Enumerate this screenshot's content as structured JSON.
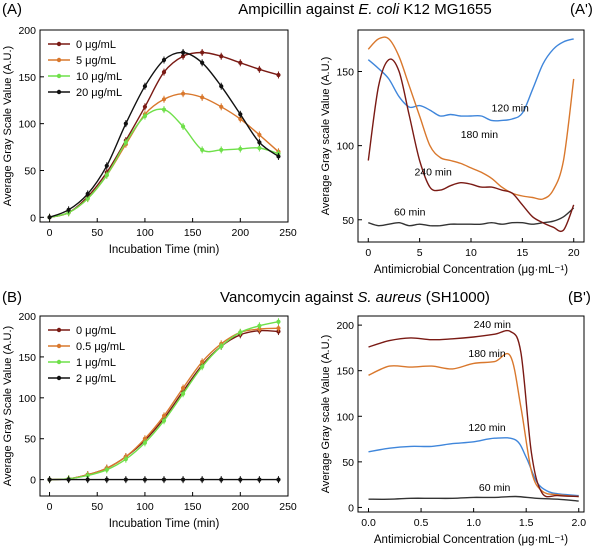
{
  "rows": [
    {
      "title_prefix": "Ampicillin against ",
      "title_species": "E. coli",
      "title_suffix": " K12 MG1655"
    },
    {
      "title_prefix": "Vancomycin against ",
      "title_species": "S. aureus",
      "title_suffix": " (SH1000)"
    }
  ],
  "colors": {
    "dark_red": "#7a1a14",
    "orange": "#d9782d",
    "green": "#6fe04a",
    "black": "#111111",
    "blue": "#3f86db"
  },
  "chart_data": [
    {
      "panel_label": "(A)",
      "type": "line",
      "title": "Ampicillin against E. coli K12 MG1655",
      "xlabel": "Incubation Time (min)",
      "ylabel": "Average Gray Scale Value (A.U.)",
      "xlim": [
        -10,
        250
      ],
      "ylim": [
        -5,
        200
      ],
      "xticks": [
        0,
        50,
        100,
        150,
        200,
        250
      ],
      "yticks": [
        0,
        50,
        100,
        150,
        200
      ],
      "legend": "top-left",
      "x": [
        0,
        20,
        40,
        60,
        80,
        100,
        120,
        140,
        160,
        180,
        200,
        220,
        240
      ],
      "series": [
        {
          "name": "0 μg/mL",
          "color": "#7a1a14",
          "values": [
            0,
            5,
            22,
            48,
            82,
            118,
            155,
            172,
            176,
            172,
            165,
            158,
            152
          ]
        },
        {
          "name": "5 μg/mL",
          "color": "#d9782d",
          "values": [
            0,
            5,
            20,
            45,
            78,
            110,
            126,
            132,
            128,
            118,
            105,
            88,
            70
          ]
        },
        {
          "name": "10 μg/mL",
          "color": "#6fe04a",
          "values": [
            0,
            5,
            20,
            45,
            80,
            108,
            115,
            97,
            72,
            72,
            73,
            74,
            68
          ]
        },
        {
          "name": "20 μg/mL",
          "color": "#111111",
          "values": [
            0,
            8,
            25,
            55,
            100,
            140,
            168,
            176,
            165,
            140,
            110,
            80,
            65
          ]
        }
      ]
    },
    {
      "panel_label": "(A')",
      "type": "line",
      "xlabel": "Antimicrobial Concentration (μg·mL⁻¹)",
      "ylabel": "Average Gray scale Value (A.U.)",
      "xlim": [
        -1,
        21
      ],
      "ylim": [
        35,
        178
      ],
      "xticks": [
        0,
        5,
        10,
        15,
        20
      ],
      "yticks": [
        50,
        100,
        150
      ],
      "annotations": [
        {
          "text": "120 min",
          "x": 12,
          "y": 123
        },
        {
          "text": "180 min",
          "x": 9,
          "y": 105
        },
        {
          "text": "240 min",
          "x": 4.5,
          "y": 80
        },
        {
          "text": "60 min",
          "x": 2.5,
          "y": 53
        }
      ],
      "series": [
        {
          "name": "60 min",
          "color": "#333333",
          "x": [
            0,
            1,
            2,
            3,
            4,
            5,
            6,
            7,
            8,
            9,
            10,
            11,
            12,
            13,
            14,
            15,
            16,
            17,
            18,
            19,
            20
          ],
          "values": [
            48,
            46,
            47,
            48,
            46,
            47,
            46,
            46,
            47,
            47,
            47,
            47,
            48,
            47,
            48,
            48,
            47,
            48,
            49,
            52,
            58
          ]
        },
        {
          "name": "120 min",
          "color": "#3f86db",
          "x": [
            0,
            1,
            2,
            3,
            4,
            5,
            6,
            7,
            8,
            9,
            10,
            11,
            12,
            13,
            14,
            15,
            16,
            17,
            18,
            19,
            20
          ],
          "values": [
            158,
            152,
            145,
            133,
            126,
            127,
            124,
            120,
            121,
            120,
            120,
            120,
            117,
            117,
            118,
            122,
            138,
            155,
            165,
            170,
            172
          ]
        },
        {
          "name": "180 min",
          "color": "#d9782d",
          "x": [
            0,
            1,
            2,
            3,
            4,
            5,
            6,
            7,
            8,
            9,
            10,
            11,
            12,
            13,
            14,
            15,
            16,
            17,
            18,
            19,
            20
          ],
          "values": [
            165,
            172,
            172,
            160,
            140,
            120,
            100,
            92,
            90,
            88,
            85,
            82,
            78,
            72,
            68,
            66,
            65,
            64,
            70,
            90,
            145
          ]
        },
        {
          "name": "240 min",
          "color": "#7a1a14",
          "x": [
            0,
            1,
            2,
            3,
            4,
            5,
            6,
            7,
            8,
            9,
            10,
            11,
            12,
            13,
            14,
            15,
            16,
            17,
            18,
            19,
            20
          ],
          "values": [
            90,
            140,
            158,
            150,
            120,
            90,
            72,
            70,
            73,
            75,
            74,
            72,
            72,
            70,
            68,
            60,
            52,
            48,
            45,
            43,
            60
          ]
        }
      ]
    },
    {
      "panel_label": "(B)",
      "type": "line",
      "title": "Vancomycin against S. aureus (SH1000)",
      "xlabel": "Incubation Time (min)",
      "ylabel": "Average Gray Scale Value (A.U.)",
      "xlim": [
        -10,
        250
      ],
      "ylim": [
        -20,
        200
      ],
      "xticks": [
        0,
        50,
        100,
        150,
        200,
        250
      ],
      "yticks": [
        0,
        50,
        100,
        150,
        200
      ],
      "legend": "top-left",
      "x": [
        0,
        20,
        40,
        60,
        80,
        100,
        120,
        140,
        160,
        180,
        200,
        220,
        240
      ],
      "series": [
        {
          "name": "0 μg/mL",
          "color": "#7a1a14",
          "values": [
            0,
            1,
            6,
            14,
            28,
            48,
            75,
            108,
            140,
            163,
            177,
            182,
            181
          ]
        },
        {
          "name": "0.5 μg/mL",
          "color": "#d9782d",
          "values": [
            0,
            1,
            6,
            14,
            28,
            50,
            78,
            112,
            144,
            166,
            180,
            184,
            185
          ]
        },
        {
          "name": "1 μg/mL",
          "color": "#6fe04a",
          "values": [
            0,
            1,
            5,
            12,
            25,
            45,
            72,
            105,
            138,
            163,
            180,
            188,
            193
          ]
        },
        {
          "name": "2 μg/mL",
          "color": "#111111",
          "values": [
            0,
            0,
            0,
            0,
            0,
            0,
            0,
            0,
            0,
            0,
            0,
            0,
            0
          ]
        }
      ]
    },
    {
      "panel_label": "(B')",
      "type": "line",
      "xlabel": "Antimicrobial Concentration (μg·mL⁻¹)",
      "ylabel": "Average Gray scale Value (A.U.)",
      "xlim": [
        -0.1,
        2.05
      ],
      "ylim": [
        -5,
        210
      ],
      "xticks": [
        0.0,
        0.5,
        1.0,
        1.5,
        2.0
      ],
      "yticks": [
        0,
        50,
        100,
        150,
        200
      ],
      "annotations": [
        {
          "text": "240 min",
          "x": 1.0,
          "y": 197
        },
        {
          "text": "180 min",
          "x": 0.95,
          "y": 165
        },
        {
          "text": "120 min",
          "x": 0.95,
          "y": 84
        },
        {
          "text": "60 min",
          "x": 1.05,
          "y": 18
        }
      ],
      "series": [
        {
          "name": "60 min",
          "color": "#333333",
          "x": [
            0,
            0.2,
            0.4,
            0.6,
            0.8,
            1.0,
            1.2,
            1.4,
            1.6,
            1.8,
            2.0
          ],
          "values": [
            9,
            9,
            10,
            10,
            10,
            11,
            11,
            12,
            10,
            9,
            7
          ]
        },
        {
          "name": "120 min",
          "color": "#3f86db",
          "x": [
            0,
            0.2,
            0.4,
            0.6,
            0.8,
            1.0,
            1.2,
            1.4,
            1.5,
            1.6,
            1.7,
            1.8,
            2.0
          ],
          "values": [
            61,
            65,
            67,
            67,
            70,
            72,
            76,
            74,
            55,
            28,
            18,
            15,
            13
          ]
        },
        {
          "name": "180 min",
          "color": "#d9782d",
          "x": [
            0,
            0.2,
            0.4,
            0.6,
            0.8,
            1.0,
            1.2,
            1.35,
            1.45,
            1.55,
            1.65,
            1.8,
            2.0
          ],
          "values": [
            145,
            155,
            154,
            155,
            152,
            158,
            160,
            166,
            110,
            40,
            18,
            14,
            12
          ]
        },
        {
          "name": "240 min",
          "color": "#7a1a14",
          "x": [
            0,
            0.2,
            0.4,
            0.6,
            0.8,
            1.0,
            1.2,
            1.35,
            1.45,
            1.55,
            1.65,
            1.8,
            2.0
          ],
          "values": [
            176,
            183,
            186,
            184,
            185,
            187,
            190,
            193,
            170,
            60,
            16,
            13,
            12
          ]
        }
      ]
    }
  ]
}
